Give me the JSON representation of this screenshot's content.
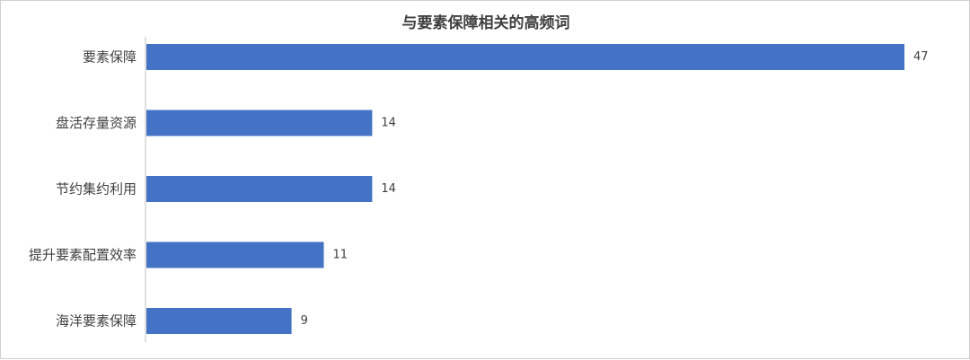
{
  "chart_data": {
    "type": "bar",
    "orientation": "horizontal",
    "title": "与要素保障相关的高频词",
    "categories": [
      "要素保障",
      "盘活存量资源",
      "节约集约利用",
      "提升要素配置效率",
      "海洋要素保障"
    ],
    "values": [
      47,
      14,
      14,
      11,
      9
    ],
    "xlim": [
      0,
      50
    ],
    "grid": false,
    "legend": "none",
    "bar_color": "#4472C4",
    "data_labels": true
  }
}
